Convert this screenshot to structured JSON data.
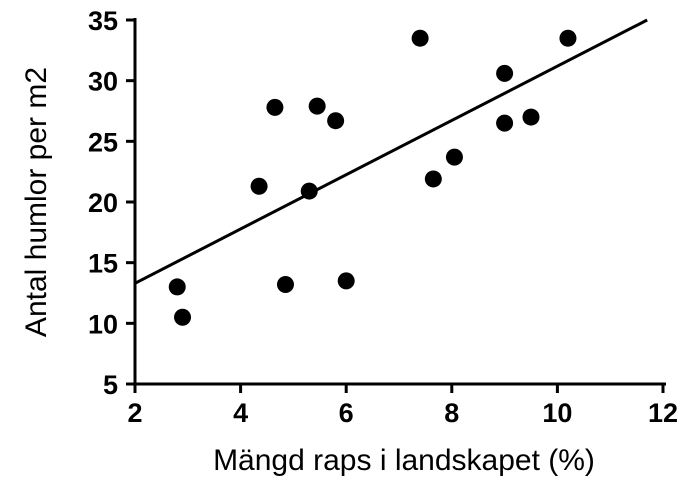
{
  "chart_data": {
    "type": "scatter",
    "title": "",
    "xlabel": "Mängd raps i landskapet (%)",
    "ylabel": "Antal humlor per m2",
    "xlim": [
      2,
      12
    ],
    "ylim": [
      5,
      35
    ],
    "xticks": [
      2,
      4,
      6,
      8,
      10,
      12
    ],
    "yticks": [
      5,
      10,
      15,
      20,
      25,
      30,
      35
    ],
    "grid": false,
    "legend": "none",
    "series": [
      {
        "points": [
          {
            "x": 2.8,
            "y": 13.0
          },
          {
            "x": 2.9,
            "y": 10.5
          },
          {
            "x": 4.35,
            "y": 21.3
          },
          {
            "x": 4.65,
            "y": 27.8
          },
          {
            "x": 4.85,
            "y": 13.2
          },
          {
            "x": 5.3,
            "y": 20.9
          },
          {
            "x": 5.45,
            "y": 27.9
          },
          {
            "x": 5.8,
            "y": 26.7
          },
          {
            "x": 6.0,
            "y": 13.5
          },
          {
            "x": 7.4,
            "y": 33.5
          },
          {
            "x": 7.65,
            "y": 21.9
          },
          {
            "x": 8.05,
            "y": 23.7
          },
          {
            "x": 9.0,
            "y": 30.6
          },
          {
            "x": 9.0,
            "y": 26.5
          },
          {
            "x": 9.5,
            "y": 27.0
          },
          {
            "x": 10.2,
            "y": 33.5
          }
        ]
      }
    ],
    "trendline": {
      "x": [
        2.0,
        11.7
      ],
      "y": [
        13.3,
        35.0
      ]
    },
    "colors": {
      "points": "#000000",
      "line": "#000000",
      "axes": "#000000"
    }
  }
}
